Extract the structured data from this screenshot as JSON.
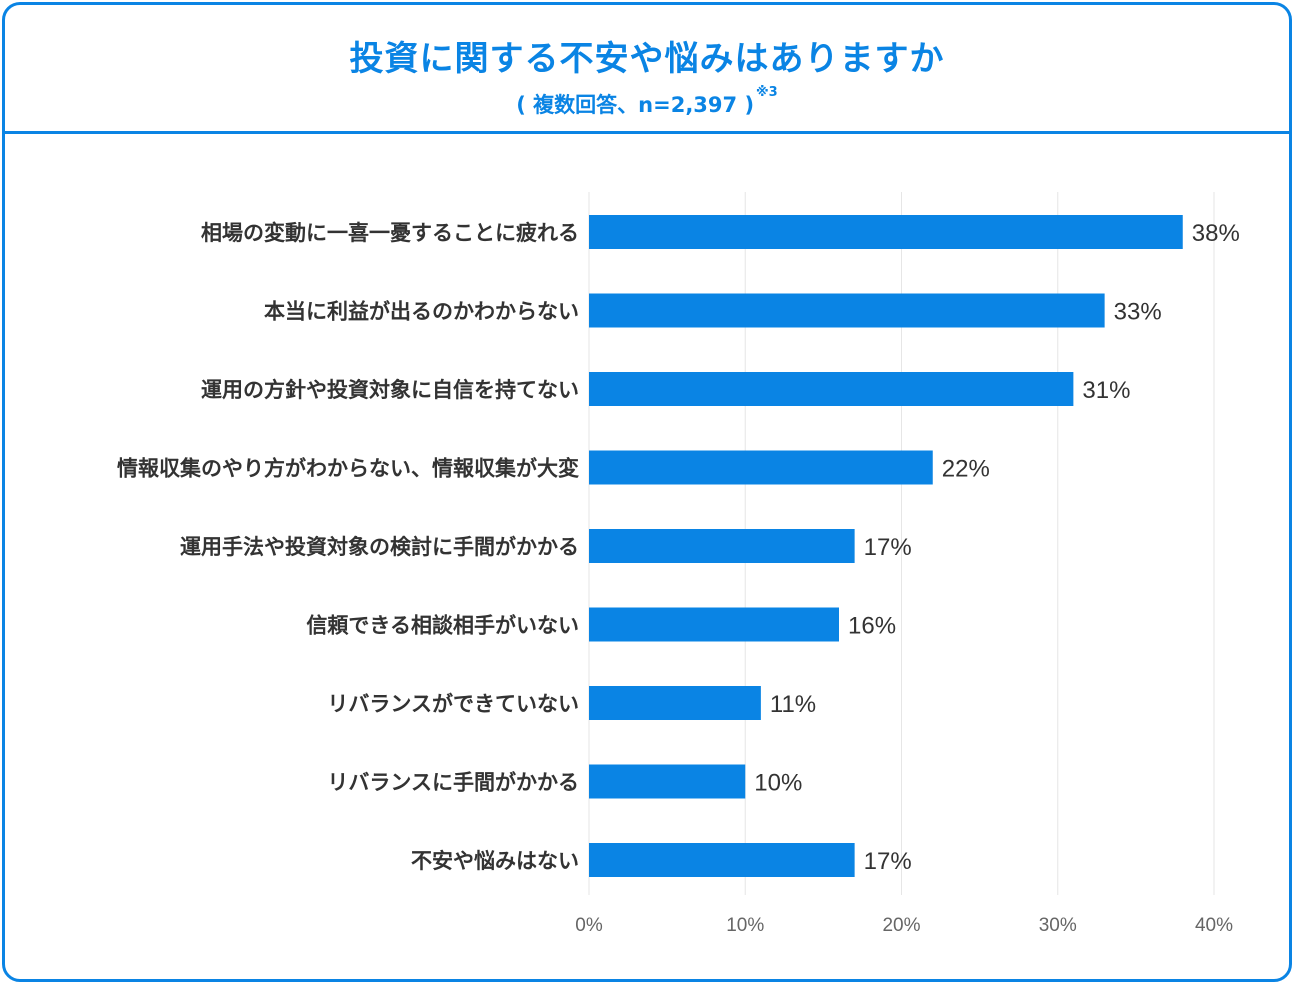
{
  "header": {
    "title": "投資に関する不安や悩みはありますか",
    "subtitle": "( 複数回答、n=2,397 )",
    "note_mark": "※3"
  },
  "chart_data": {
    "type": "bar",
    "orientation": "horizontal",
    "title": "投資に関する不安や悩みはありますか",
    "subtitle": "( 複数回答、n=2,397 )",
    "categories": [
      "相場の変動に一喜一憂することに疲れる",
      "本当に利益が出るのかわからない",
      "運用の方針や投資対象に自信を持てない",
      "情報収集のやり方がわからない、情報収集が大変",
      "運用手法や投資対象の検討に手間がかかる",
      "信頼できる相談相手がいない",
      "リバランスができていない",
      "リバランスに手間がかかる",
      "不安や悩みはない"
    ],
    "values": [
      38,
      33,
      31,
      22,
      17,
      16,
      11,
      10,
      17
    ],
    "value_labels": [
      "38%",
      "33%",
      "31%",
      "22%",
      "17%",
      "16%",
      "11%",
      "10%",
      "17%"
    ],
    "xlim": [
      0,
      40
    ],
    "xticks": [
      0,
      10,
      20,
      30,
      40
    ],
    "xtick_labels": [
      "0%",
      "10%",
      "20%",
      "30%",
      "40%"
    ],
    "grid": "vertical",
    "colors": {
      "bar": "#0a84e4",
      "accent": "#0a84e4",
      "grid": "#e6e6e6",
      "text": "#333333",
      "tick_text": "#666666"
    }
  }
}
